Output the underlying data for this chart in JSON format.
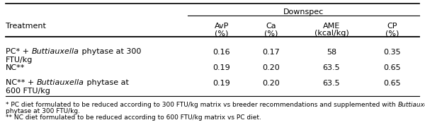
{
  "title": "Downspec",
  "treatment_label": "Treatment",
  "col_headers_line1": [
    "AvP",
    "Ca",
    "AME",
    "CP"
  ],
  "col_headers_line2": [
    "(%)",
    "(%)",
    "(kcal/kg)",
    "(%)"
  ],
  "data": [
    [
      "0.16",
      "0.17",
      "58",
      "0.35"
    ],
    [
      "0.19",
      "0.20",
      "63.5",
      "0.65"
    ],
    [
      "0.19",
      "0.20",
      "63.5",
      "0.65"
    ]
  ],
  "row1_pre": "PC* + ",
  "row1_italic": "Buttiauxella",
  "row1_post": " phytase at 300",
  "row1_line2": "FTU/kg",
  "row2": "NC**",
  "row3_pre": "NC** + ",
  "row3_italic": "Buttiauxella",
  "row3_post": " phytase at",
  "row3_line2": "600 FTU/kg",
  "fn1_pre": "* PC diet formulated to be reduced according to 300 FTU/kg matrix vs breeder recommendations and supplemented with ",
  "fn1_italic": "Buttiauxella",
  "fn1_line2": "phytase at 300 FTU/kg.",
  "fn2": "** NC diet formulated to be reduced according to 600 FTU/kg matrix vs PC diet.",
  "bg_color": "#ffffff",
  "text_color": "#000000",
  "font_size": 8.0,
  "footnote_font_size": 6.5,
  "font_family": "DejaVu Sans"
}
